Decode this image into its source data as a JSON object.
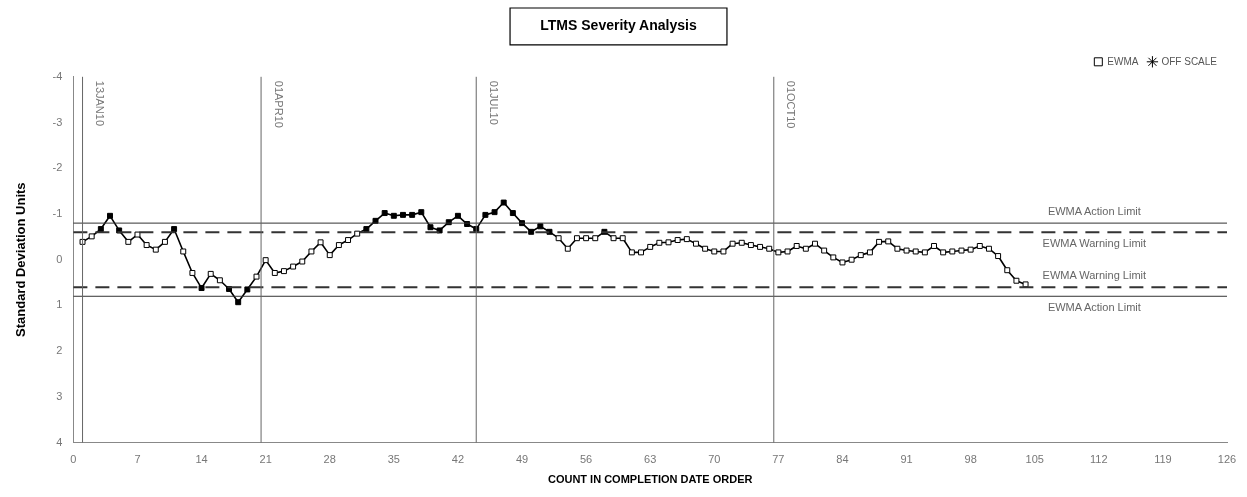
{
  "chart_data": {
    "type": "line",
    "title": "LTMS Severity Analysis",
    "xlabel": "COUNT IN COMPLETION DATE ORDER",
    "ylabel": "Standard Deviation Units",
    "x": [
      1,
      2,
      3,
      4,
      5,
      6,
      7,
      8,
      9,
      10,
      11,
      12,
      13,
      14,
      15,
      16,
      17,
      18,
      19,
      20,
      21,
      22,
      23,
      24,
      25,
      26,
      27,
      28,
      29,
      30,
      31,
      32,
      33,
      34,
      35,
      36,
      37,
      38,
      39,
      40,
      41,
      42,
      43,
      44,
      45,
      46,
      47,
      48,
      49,
      50,
      51,
      52,
      53,
      54,
      55,
      56,
      57,
      58,
      59,
      60,
      61,
      62,
      63,
      64,
      65,
      66,
      67,
      68,
      69,
      70,
      71,
      72,
      73,
      74,
      75,
      76,
      77,
      78,
      79,
      80,
      81,
      82,
      83,
      84,
      85,
      86,
      87,
      88,
      89,
      90,
      91,
      92,
      93,
      94,
      95,
      96,
      97,
      98,
      99,
      100,
      101,
      102,
      103,
      104
    ],
    "series": [
      {
        "name": "EWMA",
        "marker": "square",
        "color": "#000000",
        "values": [
          -0.39,
          -0.51,
          -0.67,
          -0.96,
          -0.64,
          -0.39,
          -0.55,
          -0.32,
          -0.22,
          -0.39,
          -0.67,
          -0.18,
          0.29,
          0.62,
          0.31,
          0.45,
          0.64,
          0.93,
          0.65,
          0.37,
          0.01,
          0.29,
          0.25,
          0.15,
          0.04,
          -0.18,
          -0.38,
          -0.1,
          -0.32,
          -0.43,
          -0.57,
          -0.67,
          -0.85,
          -1.02,
          -0.96,
          -0.98,
          -0.98,
          -1.04,
          -0.71,
          -0.64,
          -0.82,
          -0.96,
          -0.78,
          -0.67,
          -0.98,
          -1.04,
          -1.25,
          -1.02,
          -0.8,
          -0.61,
          -0.73,
          -0.61,
          -0.47,
          -0.24,
          -0.47,
          -0.47,
          -0.47,
          -0.61,
          -0.47,
          -0.47,
          -0.16,
          -0.16,
          -0.28,
          -0.37,
          -0.38,
          -0.43,
          -0.45,
          -0.35,
          -0.24,
          -0.18,
          -0.18,
          -0.35,
          -0.37,
          -0.32,
          -0.28,
          -0.24,
          -0.16,
          -0.18,
          -0.3,
          -0.24,
          -0.35,
          -0.2,
          -0.05,
          0.06,
          0.0,
          -0.1,
          -0.16,
          -0.39,
          -0.4,
          -0.24,
          -0.2,
          -0.18,
          -0.16,
          -0.3,
          -0.16,
          -0.18,
          -0.2,
          -0.22,
          -0.3,
          -0.24,
          -0.08,
          0.23,
          0.46,
          0.54
        ],
        "colors": [
          "#ffffff",
          "#ffffff",
          "#000000",
          "#000000",
          "#000000",
          "#ffffff",
          "#ffffff",
          "#ffffff",
          "#ffffff",
          "#ffffff",
          "#000000",
          "#ffffff",
          "#ffffff",
          "#000000",
          "#ffffff",
          "#ffffff",
          "#000000",
          "#000000",
          "#000000",
          "#ffffff",
          "#ffffff",
          "#ffffff",
          "#ffffff",
          "#ffffff",
          "#ffffff",
          "#ffffff",
          "#ffffff",
          "#ffffff",
          "#ffffff",
          "#ffffff",
          "#ffffff",
          "#000000",
          "#000000",
          "#000000",
          "#000000",
          "#000000",
          "#000000",
          "#000000",
          "#000000",
          "#000000",
          "#000000",
          "#000000",
          "#000000",
          "#000000",
          "#000000",
          "#000000",
          "#000000",
          "#000000",
          "#000000",
          "#000000",
          "#000000",
          "#000000",
          "#ffffff",
          "#ffffff",
          "#ffffff",
          "#ffffff",
          "#ffffff",
          "#000000",
          "#ffffff",
          "#ffffff",
          "#ffffff",
          "#ffffff",
          "#ffffff",
          "#ffffff",
          "#ffffff",
          "#ffffff",
          "#ffffff",
          "#ffffff",
          "#ffffff",
          "#ffffff",
          "#ffffff",
          "#ffffff",
          "#ffffff",
          "#ffffff",
          "#ffffff",
          "#ffffff",
          "#ffffff",
          "#ffffff",
          "#ffffff",
          "#ffffff",
          "#ffffff",
          "#ffffff",
          "#ffffff",
          "#ffffff",
          "#ffffff",
          "#ffffff",
          "#ffffff",
          "#ffffff",
          "#ffffff",
          "#ffffff",
          "#ffffff",
          "#ffffff",
          "#ffffff",
          "#ffffff",
          "#ffffff",
          "#ffffff",
          "#ffffff",
          "#ffffff",
          "#ffffff",
          "#ffffff",
          "#ffffff",
          "#ffffff",
          "#ffffff",
          "#ffffff"
        ]
      },
      {
        "name": "OFF SCALE",
        "type": "scatter",
        "marker": "star",
        "color": "#000000",
        "values": [
          null,
          null,
          null,
          null,
          null,
          null,
          null,
          null,
          null,
          null,
          null,
          null,
          null,
          null,
          null,
          null,
          null,
          null,
          null,
          null,
          null,
          null,
          null,
          null,
          null,
          null,
          null,
          null,
          null,
          null,
          null,
          null,
          null,
          null,
          null,
          null,
          null,
          null,
          null,
          null,
          null,
          null,
          null,
          null,
          null,
          null,
          null,
          null,
          null,
          null,
          null,
          null,
          null,
          null,
          null,
          null,
          null,
          null,
          null,
          null,
          null,
          null,
          null,
          null,
          null,
          null,
          null,
          null,
          null,
          null,
          null,
          null,
          null,
          null,
          null,
          null,
          null,
          null,
          null,
          null,
          null,
          null,
          null,
          null,
          null,
          null,
          null,
          null,
          null,
          null,
          null,
          null,
          null,
          null,
          null,
          null,
          null,
          null,
          null,
          null,
          null,
          null,
          null,
          null
        ]
      }
    ],
    "xlim": [
      0,
      126
    ],
    "xticks": [
      0,
      7,
      14,
      21,
      28,
      35,
      42,
      49,
      56,
      63,
      70,
      77,
      84,
      91,
      98,
      105,
      112,
      119,
      126
    ],
    "ylim": [
      4,
      -4
    ],
    "yticks": [
      -4,
      -3,
      -2,
      -1,
      0,
      1,
      2,
      3,
      4
    ],
    "ref_lines": [
      {
        "axis": "y",
        "value": -0.8,
        "label": "EWMA Action Limit",
        "color": "#333333",
        "line_style": "solid"
      },
      {
        "axis": "y",
        "value": -0.6,
        "label": "EWMA Warning Limit",
        "color": "#333333",
        "line_style": "dashed"
      },
      {
        "axis": "y",
        "value": 0.6,
        "label": "EWMA Warning Limit",
        "color": "#333333",
        "line_style": "dashed"
      },
      {
        "axis": "y",
        "value": 0.8,
        "label": "EWMA Action Limit",
        "color": "#333333",
        "line_style": "solid"
      },
      {
        "axis": "x",
        "value": 1,
        "label": "13JAN10",
        "color": "#666666",
        "line_style": "solid"
      },
      {
        "axis": "x",
        "value": 20.5,
        "label": "01APR10",
        "color": "#666666",
        "line_style": "solid"
      },
      {
        "axis": "x",
        "value": 44,
        "label": "01JUL10",
        "color": "#666666",
        "line_style": "solid"
      },
      {
        "axis": "x",
        "value": 76.5,
        "label": "01OCT10",
        "color": "#666666",
        "line_style": "solid"
      }
    ],
    "grid": false,
    "legend": "top right"
  }
}
